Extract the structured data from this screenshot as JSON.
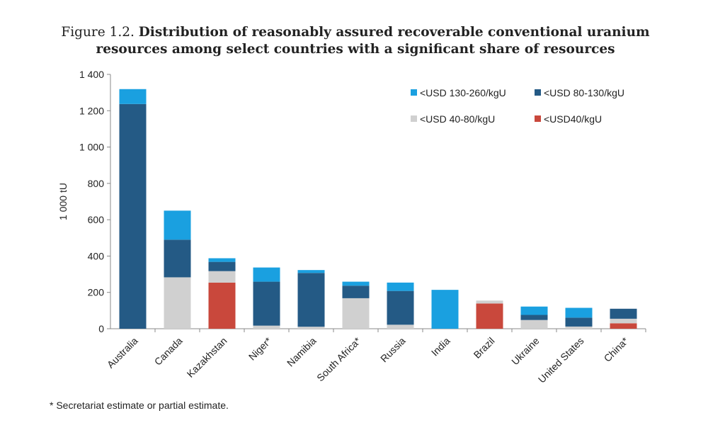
{
  "title": {
    "prefix": "Figure 1.2.",
    "line1": "Distribution of reasonably assured recoverable conventional uranium",
    "line2": "resources among select countries with a significant share of resources"
  },
  "footnote": "* Secretariat estimate or partial estimate.",
  "chart_data": {
    "type": "bar",
    "stacked": true,
    "ylabel": "1 000 tU",
    "xlabel": "",
    "ylim": [
      0,
      1400
    ],
    "yticks": [
      0,
      200,
      400,
      600,
      800,
      1000,
      1200,
      1400
    ],
    "ytick_labels": [
      "0",
      "200",
      "400",
      "600",
      "800",
      "1 000",
      "1 200",
      "1 400"
    ],
    "grid": false,
    "legend_position": "top-right",
    "categories": [
      "Australia",
      "Canada",
      "Kazakhstan",
      "Niger*",
      "Namibia",
      "South Africa*",
      "Russia",
      "India",
      "Brazil",
      "Ukraine",
      "United States",
      "China*"
    ],
    "series": [
      {
        "name": "<USD40/kgU",
        "color": "#c9483c",
        "values": [
          0,
          0,
          254,
          0,
          0,
          0,
          0,
          0,
          139,
          0,
          0,
          30
        ]
      },
      {
        "name": "<USD 40-80/kgU",
        "color": "#d0d0d0",
        "values": [
          0,
          283,
          63,
          17,
          11,
          168,
          22,
          0,
          16,
          48,
          12,
          25
        ]
      },
      {
        "name": "<USD 80-130/kgU",
        "color": "#245a85",
        "values": [
          1237,
          207,
          51,
          242,
          296,
          69,
          186,
          0,
          0,
          28,
          49,
          55
        ]
      },
      {
        "name": "<USD 130-260/kgU",
        "color": "#1aa0e0",
        "values": [
          82,
          160,
          20,
          78,
          16,
          22,
          46,
          214,
          0,
          46,
          54,
          0
        ]
      }
    ],
    "legend_order": [
      "<USD 130-260/kgU",
      "<USD 80-130/kgU",
      "<USD 40-80/kgU",
      "<USD40/kgU"
    ]
  }
}
